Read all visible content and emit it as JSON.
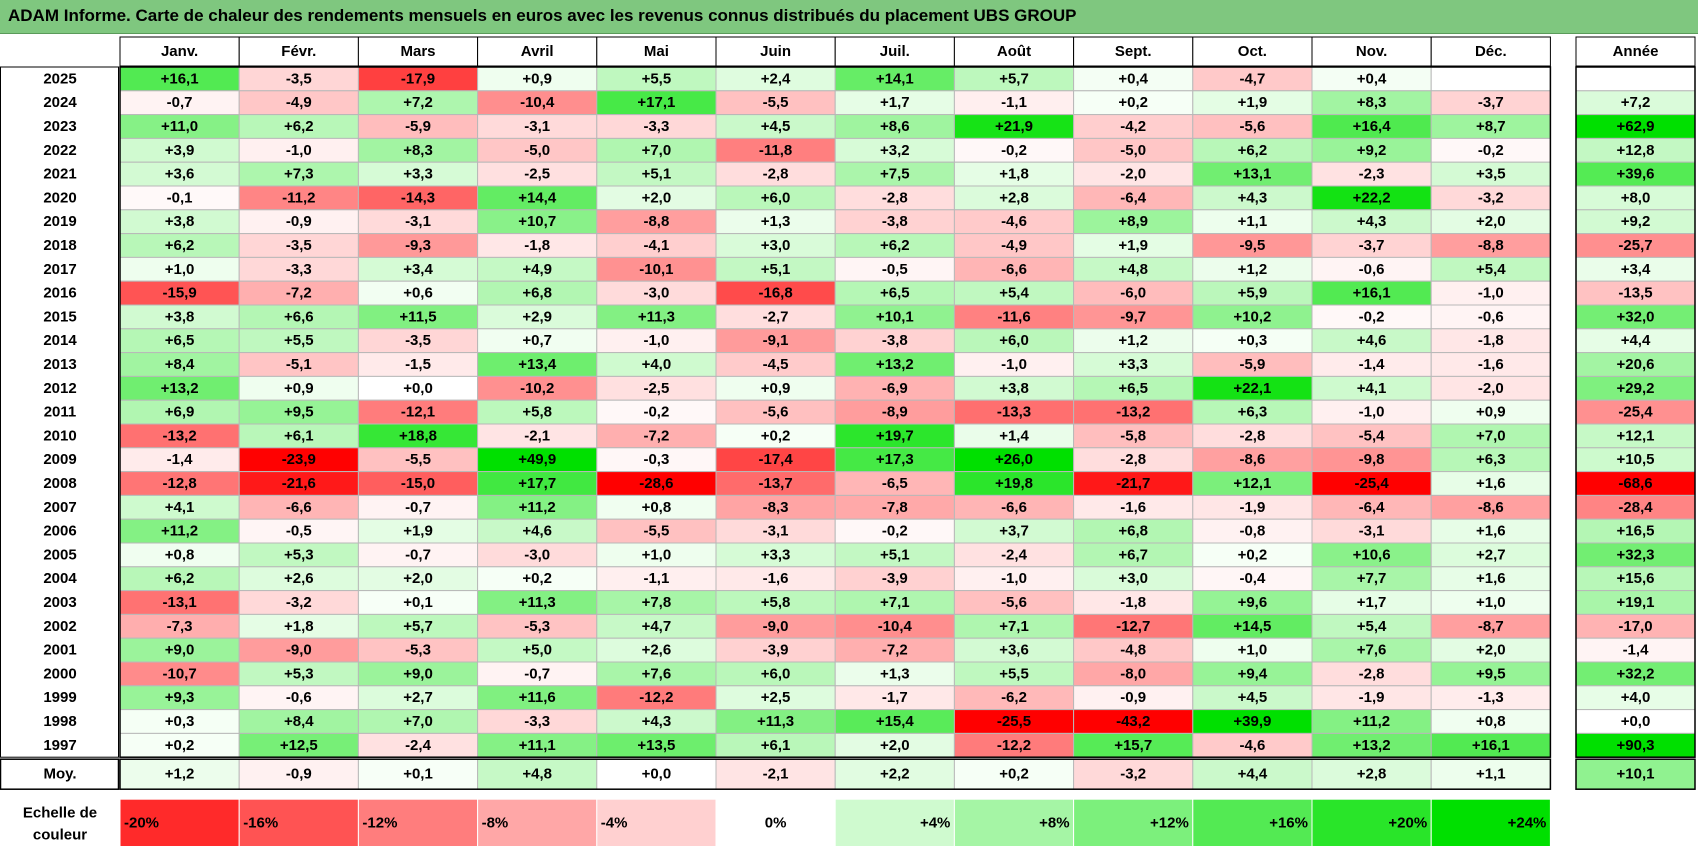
{
  "title": "ADAM Informe. Carte de chaleur des rendements mensuels en euros avec les revenus connus distribués du placement UBS GROUP",
  "chart_data": {
    "type": "heatmap",
    "columns": [
      "Janv.",
      "Févr.",
      "Mars",
      "Avril",
      "Mai",
      "Juin",
      "Juil.",
      "Août",
      "Sept.",
      "Oct.",
      "Nov.",
      "Déc."
    ],
    "year_header": "Année",
    "rows": [
      {
        "year": "2025",
        "values": [
          "+16,1",
          "-3,5",
          "-17,9",
          "+0,9",
          "+5,5",
          "+2,4",
          "+14,1",
          "+5,7",
          "+0,4",
          "-4,7",
          "+0,4",
          ""
        ],
        "annual": ""
      },
      {
        "year": "2024",
        "values": [
          "-0,7",
          "-4,9",
          "+7,2",
          "-10,4",
          "+17,1",
          "-5,5",
          "+1,7",
          "-1,1",
          "+0,2",
          "+1,9",
          "+8,3",
          "-3,7"
        ],
        "annual": "+7,2"
      },
      {
        "year": "2023",
        "values": [
          "+11,0",
          "+6,2",
          "-5,9",
          "-3,1",
          "-3,3",
          "+4,5",
          "+8,6",
          "+21,9",
          "-4,2",
          "-5,6",
          "+16,4",
          "+8,7"
        ],
        "annual": "+62,9"
      },
      {
        "year": "2022",
        "values": [
          "+3,9",
          "-1,0",
          "+8,3",
          "-5,0",
          "+7,0",
          "-11,8",
          "+3,2",
          "-0,2",
          "-5,0",
          "+6,2",
          "+9,2",
          "-0,2"
        ],
        "annual": "+12,8"
      },
      {
        "year": "2021",
        "values": [
          "+3,6",
          "+7,3",
          "+3,3",
          "-2,5",
          "+5,1",
          "-2,8",
          "+7,5",
          "+1,8",
          "-2,0",
          "+13,1",
          "-2,3",
          "+3,5"
        ],
        "annual": "+39,6"
      },
      {
        "year": "2020",
        "values": [
          "-0,1",
          "-11,2",
          "-14,3",
          "+14,4",
          "+2,0",
          "+6,0",
          "-2,8",
          "+2,8",
          "-6,4",
          "+4,3",
          "+22,2",
          "-3,2"
        ],
        "annual": "+8,0"
      },
      {
        "year": "2019",
        "values": [
          "+3,8",
          "-0,9",
          "-3,1",
          "+10,7",
          "-8,8",
          "+1,3",
          "-3,8",
          "-4,6",
          "+8,9",
          "+1,1",
          "+4,3",
          "+2,0"
        ],
        "annual": "+9,2"
      },
      {
        "year": "2018",
        "values": [
          "+6,2",
          "-3,5",
          "-9,3",
          "-1,8",
          "-4,1",
          "+3,0",
          "+6,2",
          "-4,9",
          "+1,9",
          "-9,5",
          "-3,7",
          "-8,8"
        ],
        "annual": "-25,7"
      },
      {
        "year": "2017",
        "values": [
          "+1,0",
          "-3,3",
          "+3,4",
          "+4,9",
          "-10,1",
          "+5,1",
          "-0,5",
          "-6,6",
          "+4,8",
          "+1,2",
          "-0,6",
          "+5,4"
        ],
        "annual": "+3,4"
      },
      {
        "year": "2016",
        "values": [
          "-15,9",
          "-7,2",
          "+0,6",
          "+6,8",
          "-3,0",
          "-16,8",
          "+6,5",
          "+5,4",
          "-6,0",
          "+5,9",
          "+16,1",
          "-1,0"
        ],
        "annual": "-13,5"
      },
      {
        "year": "2015",
        "values": [
          "+3,8",
          "+6,6",
          "+11,5",
          "+2,9",
          "+11,3",
          "-2,7",
          "+10,1",
          "-11,6",
          "-9,7",
          "+10,2",
          "-0,2",
          "-0,6"
        ],
        "annual": "+32,0"
      },
      {
        "year": "2014",
        "values": [
          "+6,5",
          "+5,5",
          "-3,5",
          "+0,7",
          "-1,0",
          "-9,1",
          "-3,8",
          "+6,0",
          "+1,2",
          "+0,3",
          "+4,6",
          "-1,8"
        ],
        "annual": "+4,4"
      },
      {
        "year": "2013",
        "values": [
          "+8,4",
          "-5,1",
          "-1,5",
          "+13,4",
          "+4,0",
          "-4,5",
          "+13,2",
          "-1,0",
          "+3,3",
          "-5,9",
          "-1,4",
          "-1,6"
        ],
        "annual": "+20,6"
      },
      {
        "year": "2012",
        "values": [
          "+13,2",
          "+0,9",
          "+0,0",
          "-10,2",
          "-2,5",
          "+0,9",
          "-6,9",
          "+3,8",
          "+6,5",
          "+22,1",
          "+4,1",
          "-2,0"
        ],
        "annual": "+29,2"
      },
      {
        "year": "2011",
        "values": [
          "+6,9",
          "+9,5",
          "-12,1",
          "+5,8",
          "-0,2",
          "-5,6",
          "-8,9",
          "-13,3",
          "-13,2",
          "+6,3",
          "-1,0",
          "+0,9"
        ],
        "annual": "-25,4"
      },
      {
        "year": "2010",
        "values": [
          "-13,2",
          "+6,1",
          "+18,8",
          "-2,1",
          "-7,2",
          "+0,2",
          "+19,7",
          "+1,4",
          "-5,8",
          "-2,8",
          "-5,4",
          "+7,0"
        ],
        "annual": "+12,1"
      },
      {
        "year": "2009",
        "values": [
          "-1,4",
          "-23,9",
          "-5,5",
          "+49,9",
          "-0,3",
          "-17,4",
          "+17,3",
          "+26,0",
          "-2,8",
          "-8,6",
          "-9,8",
          "+6,3"
        ],
        "annual": "+10,5"
      },
      {
        "year": "2008",
        "values": [
          "-12,8",
          "-21,6",
          "-15,0",
          "+17,7",
          "-28,6",
          "-13,7",
          "-6,5",
          "+19,8",
          "-21,7",
          "+12,1",
          "-25,4",
          "+1,6"
        ],
        "annual": "-68,6"
      },
      {
        "year": "2007",
        "values": [
          "+4,1",
          "-6,6",
          "-0,7",
          "+11,2",
          "+0,8",
          "-8,3",
          "-7,8",
          "-6,6",
          "-1,6",
          "-1,9",
          "-6,4",
          "-8,6"
        ],
        "annual": "-28,4"
      },
      {
        "year": "2006",
        "values": [
          "+11,2",
          "-0,5",
          "+1,9",
          "+4,6",
          "-5,5",
          "-3,1",
          "-0,2",
          "+3,7",
          "+6,8",
          "-0,8",
          "-3,1",
          "+1,6"
        ],
        "annual": "+16,5"
      },
      {
        "year": "2005",
        "values": [
          "+0,8",
          "+5,3",
          "-0,7",
          "-3,0",
          "+1,0",
          "+3,3",
          "+5,1",
          "-2,4",
          "+6,7",
          "+0,2",
          "+10,6",
          "+2,7"
        ],
        "annual": "+32,3"
      },
      {
        "year": "2004",
        "values": [
          "+6,2",
          "+2,6",
          "+2,0",
          "+0,2",
          "-1,1",
          "-1,6",
          "-3,9",
          "-1,0",
          "+3,0",
          "-0,4",
          "+7,7",
          "+1,6"
        ],
        "annual": "+15,6"
      },
      {
        "year": "2003",
        "values": [
          "-13,1",
          "-3,2",
          "+0,1",
          "+11,3",
          "+7,8",
          "+5,8",
          "+7,1",
          "-5,6",
          "-1,8",
          "+9,6",
          "+1,7",
          "+1,0"
        ],
        "annual": "+19,1"
      },
      {
        "year": "2002",
        "values": [
          "-7,3",
          "+1,8",
          "+5,7",
          "-5,3",
          "+4,7",
          "-9,0",
          "-10,4",
          "+7,1",
          "-12,7",
          "+14,5",
          "+5,4",
          "-8,7"
        ],
        "annual": "-17,0"
      },
      {
        "year": "2001",
        "values": [
          "+9,0",
          "-9,0",
          "-5,3",
          "+5,0",
          "+2,6",
          "-3,9",
          "-7,2",
          "+3,6",
          "-4,8",
          "+1,0",
          "+7,6",
          "+2,0"
        ],
        "annual": "-1,4"
      },
      {
        "year": "2000",
        "values": [
          "-10,7",
          "+5,3",
          "+9,0",
          "-0,7",
          "+7,6",
          "+6,0",
          "+1,3",
          "+5,5",
          "-8,0",
          "+9,4",
          "-2,8",
          "+9,5"
        ],
        "annual": "+32,2"
      },
      {
        "year": "1999",
        "values": [
          "+9,3",
          "-0,6",
          "+2,7",
          "+11,6",
          "-12,2",
          "+2,5",
          "-1,7",
          "-6,2",
          "-0,9",
          "+4,5",
          "-1,9",
          "-1,3"
        ],
        "annual": "+4,0"
      },
      {
        "year": "1998",
        "values": [
          "+0,3",
          "+8,4",
          "+7,0",
          "-3,3",
          "+4,3",
          "+11,3",
          "+15,4",
          "-25,5",
          "-43,2",
          "+39,9",
          "+11,2",
          "+0,8"
        ],
        "annual": "+0,0"
      },
      {
        "year": "1997",
        "values": [
          "+0,2",
          "+12,5",
          "-2,4",
          "+11,1",
          "+13,5",
          "+6,1",
          "+2,0",
          "-12,2",
          "+15,7",
          "-4,6",
          "+13,2",
          "+16,1"
        ],
        "annual": "+90,3"
      }
    ],
    "average": {
      "label": "Moy.",
      "values": [
        "+1,2",
        "-0,9",
        "+0,1",
        "+4,8",
        "+0,0",
        "-2,1",
        "+2,2",
        "+0,2",
        "-3,2",
        "+4,4",
        "+2,8",
        "+1,1"
      ],
      "annual": "+10,1"
    },
    "scale": {
      "label_line1": "Echelle de",
      "label_line2": "couleur",
      "stops": [
        "-20%",
        "-16%",
        "-12%",
        "-8%",
        "-4%",
        "0%",
        "+4%",
        "+8%",
        "+12%",
        "+16%",
        "+20%",
        "+24%"
      ],
      "stop_values": [
        -20,
        -16,
        -12,
        -8,
        -4,
        0,
        4,
        8,
        12,
        16,
        20,
        24
      ]
    },
    "colors": {
      "max_red": "#ff0000",
      "max_green": "#00e000",
      "title_bg": "#7fc77f"
    }
  }
}
